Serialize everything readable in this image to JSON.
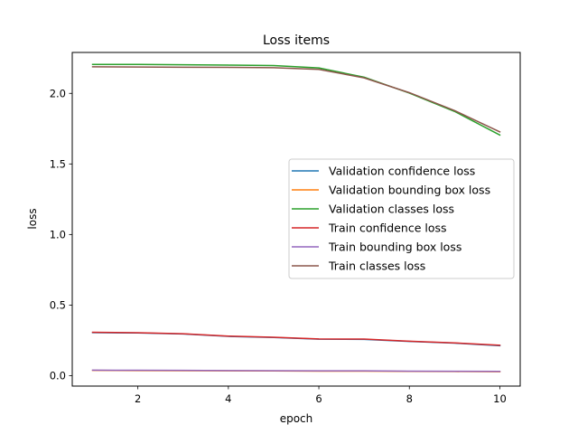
{
  "chart_data": {
    "type": "line",
    "title": "Loss items",
    "xlabel": "epoch",
    "ylabel": "loss",
    "xlim": [
      0.55,
      10.45
    ],
    "ylim": [
      -0.074,
      2.29
    ],
    "xticks": [
      2,
      4,
      6,
      8,
      10
    ],
    "yticks": [
      0.0,
      0.5,
      1.0,
      1.5,
      2.0
    ],
    "ytick_labels": [
      "0.0",
      "0.5",
      "1.0",
      "1.5",
      "2.0"
    ],
    "grid": false,
    "legend_position": "center-right",
    "x": [
      1,
      2,
      3,
      4,
      5,
      6,
      7,
      8,
      9,
      10
    ],
    "series": [
      {
        "name": "Validation confidence loss",
        "color": "#1f77b4",
        "values": [
          0.305,
          0.302,
          0.295,
          0.278,
          0.27,
          0.258,
          0.257,
          0.242,
          0.23,
          0.212
        ]
      },
      {
        "name": "Validation bounding box loss",
        "color": "#ff7f0e",
        "values": [
          0.037,
          0.036,
          0.035,
          0.034,
          0.033,
          0.032,
          0.032,
          0.03,
          0.029,
          0.028
        ]
      },
      {
        "name": "Validation classes loss",
        "color": "#2ca02c",
        "values": [
          2.205,
          2.205,
          2.203,
          2.2,
          2.197,
          2.18,
          2.115,
          2.002,
          1.872,
          1.705
        ]
      },
      {
        "name": "Train confidence loss",
        "color": "#d62728",
        "values": [
          0.307,
          0.304,
          0.297,
          0.28,
          0.272,
          0.26,
          0.259,
          0.244,
          0.232,
          0.215
        ]
      },
      {
        "name": "Train bounding box loss",
        "color": "#9467bd",
        "values": [
          0.039,
          0.038,
          0.037,
          0.036,
          0.035,
          0.034,
          0.034,
          0.032,
          0.031,
          0.03
        ]
      },
      {
        "name": "Train classes loss",
        "color": "#8c564b",
        "values": [
          2.188,
          2.187,
          2.185,
          2.184,
          2.182,
          2.17,
          2.11,
          2.005,
          1.878,
          1.727
        ]
      }
    ]
  }
}
